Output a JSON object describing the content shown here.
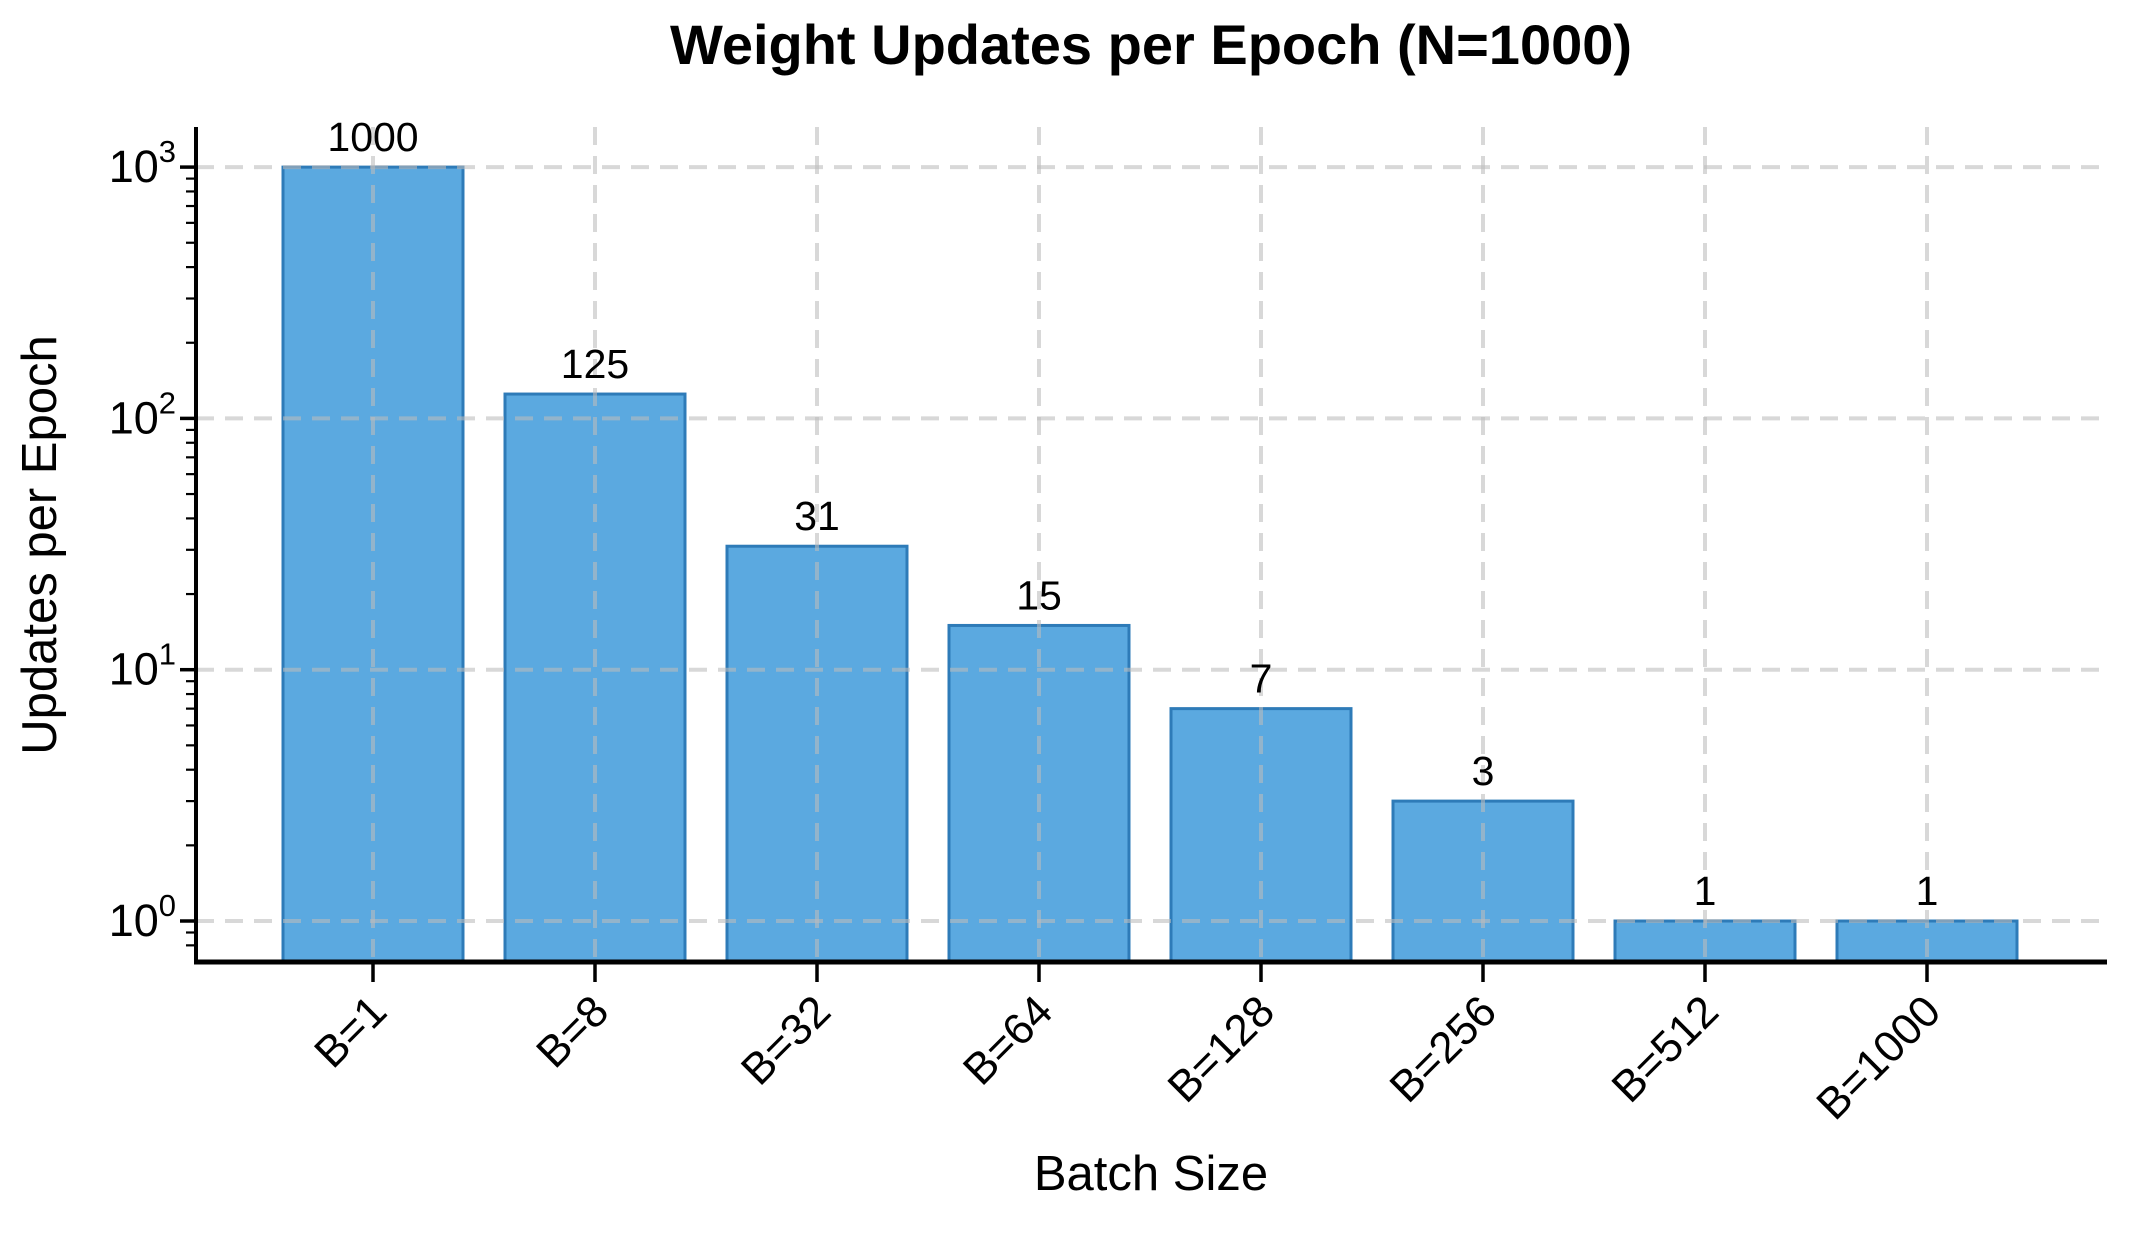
{
  "chart_data": {
    "type": "bar",
    "title": "Weight Updates per Epoch (N=1000)",
    "xlabel": "Batch Size",
    "ylabel": "Updates per Epoch",
    "categories": [
      "B=1",
      "B=8",
      "B=32",
      "B=64",
      "B=128",
      "B=256",
      "B=512",
      "B=1000"
    ],
    "values": [
      1000,
      125,
      31,
      15,
      7,
      3,
      1,
      1
    ],
    "bar_labels": [
      "1000",
      "125",
      "31",
      "15",
      "7",
      "3",
      "1",
      "1"
    ],
    "yscale": "log",
    "ylim": [
      0.7,
      1450
    ],
    "y_ticks": [
      {
        "base": "10",
        "exp": "0",
        "value": 1
      },
      {
        "base": "10",
        "exp": "1",
        "value": 10
      },
      {
        "base": "10",
        "exp": "2",
        "value": 100
      },
      {
        "base": "10",
        "exp": "3",
        "value": 1000
      }
    ],
    "grid": {
      "style": "dashed",
      "axes": "both"
    },
    "legend": "none",
    "colors": {
      "bar_fill": "#5BA9E0",
      "bar_edge": "#2E7BB8",
      "grid": "#BBBBBB",
      "axis": "#000000",
      "text": "#000000",
      "background": "#FFFFFF"
    }
  }
}
